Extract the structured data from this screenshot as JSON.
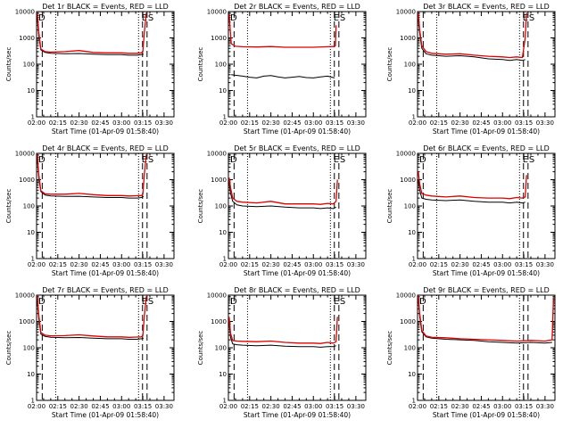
{
  "figure": {
    "xlabel": "Start Time (01-Apr-09 01:58:40)",
    "ylabel": "Counts/sec",
    "x_tick_labels": [
      "02:00",
      "02:15",
      "02:30",
      "02:45",
      "03:00",
      "03:15",
      "03:30"
    ],
    "y_tick_labels": [
      "1",
      "10",
      "100",
      "1000",
      "10000"
    ],
    "series_colors": {
      "events": "#000000",
      "lld": "#dd0000"
    }
  },
  "chart_data": [
    {
      "type": "line",
      "title": "Det 1r BLACK = Events, RED = LLD",
      "x_unit": "minutes after 02:00",
      "xlim": [
        0,
        97
      ],
      "ylim": [
        1,
        10000
      ],
      "y_scale": "log",
      "markers": [
        {
          "label": "D",
          "x": 0.6
        },
        {
          "label": "E",
          "x": 73.5
        },
        {
          "label": "S",
          "x": 78
        }
      ],
      "dashed_lines_x": [
        4,
        74.8,
        78
      ],
      "dotted_lines_x": [
        13.5,
        72
      ],
      "series": [
        {
          "name": "BLACK = Events",
          "x": [
            0.5,
            1.5,
            3,
            6,
            10,
            20,
            30,
            40,
            50,
            60,
            65,
            71,
            74,
            75.5
          ],
          "values": [
            6000,
            1200,
            350,
            280,
            260,
            250,
            255,
            240,
            230,
            230,
            220,
            220,
            230,
            240
          ]
        },
        {
          "name": "RED = LLD",
          "x": [
            0.5,
            1.5,
            3,
            6,
            10,
            20,
            30,
            40,
            50,
            60,
            65,
            71,
            74,
            75,
            76,
            77.5
          ],
          "values": [
            9000,
            1700,
            380,
            300,
            290,
            300,
            330,
            280,
            270,
            270,
            260,
            260,
            270,
            300,
            1500,
            9000
          ]
        }
      ]
    },
    {
      "type": "line",
      "title": "Det 2r BLACK = Events, RED = LLD",
      "x_unit": "minutes after 02:00",
      "xlim": [
        0,
        97
      ],
      "ylim": [
        1,
        10000
      ],
      "y_scale": "log",
      "markers": [
        {
          "label": "D",
          "x": 0.6
        },
        {
          "label": "E",
          "x": 73.5
        },
        {
          "label": "S",
          "x": 78
        }
      ],
      "dashed_lines_x": [
        4,
        74.8,
        78
      ],
      "dotted_lines_x": [
        13.5,
        72
      ],
      "series": [
        {
          "name": "BLACK = Events",
          "x": [
            2,
            5,
            10,
            15,
            20,
            25,
            30,
            35,
            40,
            45,
            50,
            55,
            60,
            65,
            70,
            75
          ],
          "values": [
            40,
            38,
            35,
            32,
            30,
            35,
            37,
            33,
            30,
            32,
            34,
            31,
            30,
            33,
            35,
            30
          ]
        },
        {
          "name": "RED = LLD",
          "x": [
            0.5,
            2,
            5,
            10,
            20,
            30,
            40,
            50,
            60,
            70,
            74,
            75.5,
            76
          ],
          "values": [
            8000,
            600,
            480,
            460,
            450,
            470,
            440,
            440,
            440,
            460,
            470,
            500,
            3000
          ]
        }
      ]
    },
    {
      "type": "line",
      "title": "Det 3r BLACK = Events, RED = LLD",
      "x_unit": "minutes after 02:00",
      "xlim": [
        0,
        97
      ],
      "ylim": [
        1,
        10000
      ],
      "y_scale": "log",
      "markers": [
        {
          "label": "E",
          "x": 73.5
        },
        {
          "label": "S",
          "x": 78
        }
      ],
      "dashed_lines_x": [
        4,
        74.8,
        78
      ],
      "dotted_lines_x": [
        13.5,
        72
      ],
      "series": [
        {
          "name": "BLACK = Events",
          "x": [
            0.5,
            1.5,
            3,
            6,
            10,
            20,
            30,
            40,
            50,
            60,
            65,
            70,
            74,
            76
          ],
          "values": [
            5000,
            1500,
            400,
            250,
            220,
            200,
            210,
            190,
            160,
            150,
            140,
            150,
            140,
            150
          ]
        },
        {
          "name": "RED = LLD",
          "x": [
            0.5,
            1.5,
            3,
            6,
            10,
            20,
            30,
            40,
            50,
            60,
            65,
            70,
            74,
            76,
            77
          ],
          "values": [
            9000,
            2000,
            500,
            300,
            260,
            240,
            250,
            220,
            200,
            190,
            180,
            190,
            180,
            1000,
            9000
          ]
        }
      ]
    },
    {
      "type": "line",
      "title": "Det 4r BLACK = Events, RED = LLD",
      "x_unit": "minutes after 02:00",
      "xlim": [
        0,
        97
      ],
      "ylim": [
        1,
        10000
      ],
      "y_scale": "log",
      "markers": [
        {
          "label": "D",
          "x": 0.6
        },
        {
          "label": "E",
          "x": 73.5
        },
        {
          "label": "S",
          "x": 78
        }
      ],
      "dashed_lines_x": [
        4,
        74.8,
        78
      ],
      "dotted_lines_x": [
        13.5,
        72
      ],
      "series": [
        {
          "name": "BLACK = Events",
          "x": [
            0.5,
            1.5,
            3,
            6,
            10,
            20,
            30,
            40,
            50,
            60,
            65,
            71,
            74,
            75.5
          ],
          "values": [
            6000,
            1200,
            350,
            260,
            240,
            230,
            235,
            220,
            210,
            210,
            200,
            200,
            210,
            230
          ]
        },
        {
          "name": "RED = LLD",
          "x": [
            0.5,
            1.5,
            3,
            6,
            10,
            20,
            30,
            40,
            50,
            60,
            65,
            71,
            74,
            75,
            76,
            77.5
          ],
          "values": [
            9000,
            1600,
            380,
            290,
            280,
            280,
            300,
            270,
            250,
            250,
            240,
            245,
            250,
            280,
            1500,
            9000
          ]
        }
      ]
    },
    {
      "type": "line",
      "title": "Det 5r BLACK = Events, RED = LLD",
      "x_unit": "minutes after 02:00",
      "xlim": [
        0,
        97
      ],
      "ylim": [
        1,
        10000
      ],
      "y_scale": "log",
      "markers": [
        {
          "label": "D",
          "x": 0.6
        },
        {
          "label": "E",
          "x": 73.5
        },
        {
          "label": "S",
          "x": 78
        }
      ],
      "dashed_lines_x": [
        4,
        74.8,
        78
      ],
      "dotted_lines_x": [
        13.5,
        72
      ],
      "series": [
        {
          "name": "BLACK = Events",
          "x": [
            0.5,
            1.5,
            3,
            6,
            10,
            20,
            30,
            40,
            50,
            60,
            65,
            70,
            74,
            76
          ],
          "values": [
            800,
            300,
            150,
            110,
            100,
            95,
            100,
            90,
            85,
            85,
            80,
            85,
            80,
            90
          ]
        },
        {
          "name": "RED = LLD",
          "x": [
            0.5,
            1.5,
            3,
            6,
            10,
            20,
            30,
            40,
            50,
            60,
            65,
            70,
            74,
            76,
            77
          ],
          "values": [
            1200,
            500,
            200,
            150,
            140,
            130,
            150,
            120,
            120,
            120,
            115,
            125,
            120,
            150,
            1000
          ]
        }
      ]
    },
    {
      "type": "line",
      "title": "Det 6r BLACK = Events, RED = LLD",
      "x_unit": "minutes after 02:00",
      "xlim": [
        0,
        97
      ],
      "ylim": [
        1,
        10000
      ],
      "y_scale": "log",
      "markers": [
        {
          "label": "D",
          "x": 0.6
        },
        {
          "label": "E",
          "x": 73.5
        },
        {
          "label": "S",
          "x": 78
        }
      ],
      "dashed_lines_x": [
        4,
        74.8,
        78
      ],
      "dotted_lines_x": [
        13.5,
        72
      ],
      "series": [
        {
          "name": "BLACK = Events",
          "x": [
            0.5,
            1.5,
            3,
            6,
            10,
            20,
            30,
            40,
            50,
            60,
            65,
            70,
            74,
            76
          ],
          "values": [
            1000,
            400,
            200,
            180,
            170,
            160,
            170,
            150,
            140,
            140,
            130,
            140,
            130,
            140
          ]
        },
        {
          "name": "RED = LLD",
          "x": [
            0.5,
            1.5,
            3,
            6,
            10,
            20,
            30,
            40,
            50,
            60,
            65,
            70,
            74,
            76,
            77
          ],
          "values": [
            2000,
            700,
            300,
            260,
            240,
            220,
            240,
            210,
            200,
            200,
            190,
            210,
            200,
            220,
            1500
          ]
        }
      ]
    },
    {
      "type": "line",
      "title": "Det 7r BLACK = Events, RED = LLD",
      "x_unit": "minutes after 02:00",
      "xlim": [
        0,
        97
      ],
      "ylim": [
        1,
        10000
      ],
      "y_scale": "log",
      "markers": [
        {
          "label": "D",
          "x": 0.6
        },
        {
          "label": "E",
          "x": 73.5
        },
        {
          "label": "S",
          "x": 78
        }
      ],
      "dashed_lines_x": [
        4,
        74.8,
        78
      ],
      "dotted_lines_x": [
        13.5,
        72
      ],
      "series": [
        {
          "name": "BLACK = Events",
          "x": [
            0.5,
            1.5,
            3,
            6,
            10,
            20,
            30,
            40,
            50,
            60,
            65,
            71,
            74,
            75.5
          ],
          "values": [
            6000,
            1300,
            330,
            270,
            250,
            240,
            245,
            230,
            220,
            220,
            210,
            210,
            220,
            230
          ]
        },
        {
          "name": "RED = LLD",
          "x": [
            0.5,
            1.5,
            3,
            6,
            10,
            20,
            30,
            40,
            50,
            60,
            65,
            71,
            74,
            75,
            76,
            77.5
          ],
          "values": [
            9000,
            1800,
            380,
            300,
            285,
            290,
            310,
            280,
            260,
            260,
            250,
            255,
            260,
            290,
            1500,
            9000
          ]
        }
      ]
    },
    {
      "type": "line",
      "title": "Det 8r BLACK = Events, RED = LLD",
      "x_unit": "minutes after 02:00",
      "xlim": [
        0,
        97
      ],
      "ylim": [
        1,
        10000
      ],
      "y_scale": "log",
      "markers": [
        {
          "label": "D",
          "x": 0.6
        },
        {
          "label": "E",
          "x": 73.5
        },
        {
          "label": "S",
          "x": 78
        }
      ],
      "dashed_lines_x": [
        4,
        74.8,
        78
      ],
      "dotted_lines_x": [
        13.5,
        72
      ],
      "series": [
        {
          "name": "BLACK = Events",
          "x": [
            0.5,
            1.5,
            3,
            6,
            10,
            20,
            30,
            40,
            50,
            60,
            65,
            70,
            74,
            76
          ],
          "values": [
            900,
            250,
            140,
            130,
            125,
            120,
            125,
            115,
            110,
            110,
            105,
            110,
            110,
            120
          ]
        },
        {
          "name": "RED = LLD",
          "x": [
            0.5,
            1.5,
            3,
            6,
            10,
            20,
            30,
            40,
            50,
            60,
            65,
            70,
            74,
            76,
            77
          ],
          "values": [
            1500,
            350,
            190,
            180,
            175,
            170,
            180,
            160,
            150,
            150,
            145,
            160,
            150,
            170,
            1500
          ]
        }
      ]
    },
    {
      "type": "line",
      "title": "Det 9r BLACK = Events, RED = LLD",
      "x_unit": "minutes after 02:00",
      "xlim": [
        0,
        97
      ],
      "ylim": [
        1,
        10000
      ],
      "y_scale": "log",
      "markers": [
        {
          "label": "D",
          "x": 0.6
        }
      ],
      "dashed_lines_x": [
        4,
        74.8,
        78
      ],
      "dotted_lines_x": [
        13.5,
        72
      ],
      "series": [
        {
          "name": "BLACK = Events",
          "x": [
            0.5,
            1.5,
            3,
            6,
            10,
            20,
            30,
            40,
            50,
            60,
            70,
            80,
            90,
            95
          ],
          "values": [
            8000,
            1500,
            400,
            260,
            230,
            210,
            200,
            190,
            170,
            160,
            150,
            160,
            150,
            160
          ]
        },
        {
          "name": "RED = LLD",
          "x": [
            0.5,
            1.5,
            3,
            6,
            10,
            20,
            30,
            40,
            50,
            60,
            70,
            80,
            90,
            95,
            96
          ],
          "values": [
            9000,
            2000,
            450,
            280,
            250,
            240,
            220,
            210,
            200,
            190,
            180,
            190,
            180,
            200,
            8000
          ]
        }
      ]
    }
  ]
}
